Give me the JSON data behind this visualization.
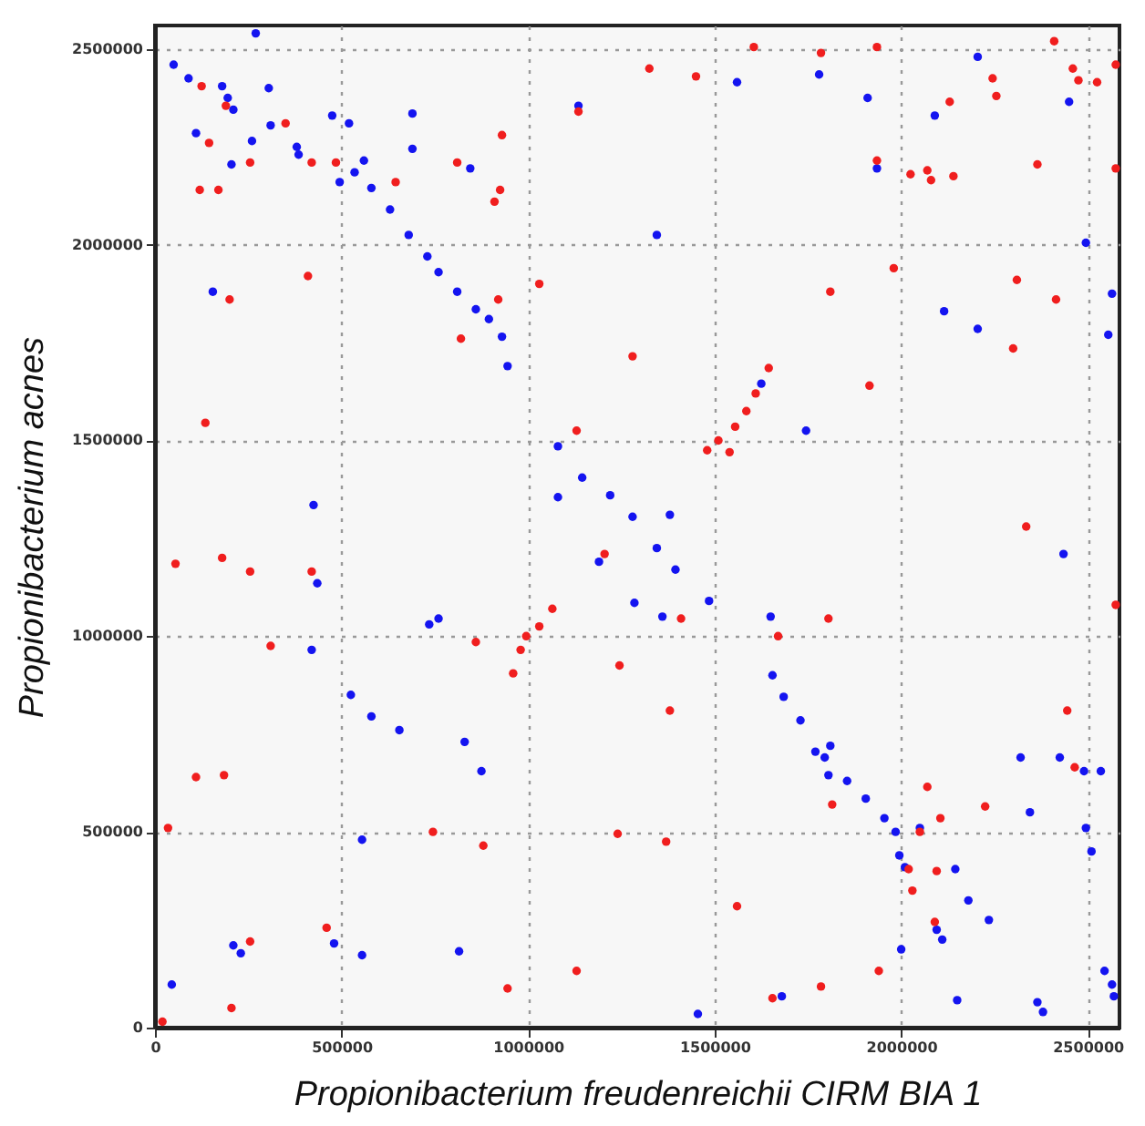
{
  "chart_data": {
    "type": "scatter",
    "xlabel": "Propionibacterium freudenreichii CIRM BIA 1",
    "ylabel": "Propionibacterium acnes",
    "xlim": [
      0,
      2585000
    ],
    "ylim": [
      0,
      2560000
    ],
    "xticks": [
      0,
      500000,
      1000000,
      1500000,
      2000000,
      2500000
    ],
    "yticks": [
      0,
      500000,
      1000000,
      1500000,
      2000000,
      2500000
    ],
    "grid": true,
    "marker": "circle",
    "series": [
      {
        "color": "#1414f0",
        "x": [
          50000,
          90000,
          110000,
          180000,
          195000,
          210000,
          205000,
          260000,
          305000,
          310000,
          380000,
          385000,
          270000,
          475000,
          520000,
          495000,
          535000,
          560000,
          580000,
          630000,
          680000,
          730000,
          760000,
          810000,
          860000,
          895000,
          930000,
          945000,
          690000,
          690000,
          845000,
          1135000,
          155000,
          425000,
          1080000,
          2205000,
          1560000,
          1780000,
          1910000,
          2090000,
          2450000,
          1935000,
          1345000,
          2495000,
          2565000,
          2115000,
          2205000,
          2555000,
          1625000,
          1745000,
          1380000,
          435000,
          420000,
          735000,
          760000,
          525000,
          580000,
          655000,
          830000,
          875000,
          555000,
          210000,
          230000,
          480000,
          555000,
          815000,
          45000,
          1190000,
          1285000,
          1080000,
          1145000,
          1220000,
          1280000,
          1345000,
          1395000,
          1485000,
          1360000,
          1650000,
          1810000,
          1805000,
          1655000,
          1685000,
          1730000,
          1770000,
          1795000,
          1855000,
          1905000,
          1955000,
          1985000,
          1995000,
          2010000,
          2145000,
          2180000,
          2235000,
          2050000,
          2095000,
          2110000,
          2000000,
          1680000,
          1455000,
          2150000,
          2365000,
          2380000,
          2320000,
          2345000,
          2425000,
          2490000,
          2535000,
          2435000,
          2495000,
          2510000,
          2545000,
          2565000,
          2570000
        ],
        "values": [
          2460000,
          2425000,
          2285000,
          2405000,
          2375000,
          2345000,
          2205000,
          2265000,
          2400000,
          2305000,
          2250000,
          2230000,
          2540000,
          2330000,
          2310000,
          2160000,
          2185000,
          2215000,
          2145000,
          2090000,
          2025000,
          1970000,
          1930000,
          1880000,
          1835000,
          1810000,
          1765000,
          1690000,
          2335000,
          2245000,
          2195000,
          2355000,
          1880000,
          1335000,
          1355000,
          2480000,
          2415000,
          2435000,
          2375000,
          2330000,
          2365000,
          2195000,
          2025000,
          2005000,
          1875000,
          1830000,
          1785000,
          1770000,
          1645000,
          1525000,
          1310000,
          1135000,
          965000,
          1030000,
          1045000,
          850000,
          795000,
          760000,
          730000,
          655000,
          480000,
          210000,
          190000,
          215000,
          185000,
          195000,
          110000,
          1190000,
          1085000,
          1485000,
          1405000,
          1360000,
          1305000,
          1225000,
          1170000,
          1090000,
          1050000,
          1050000,
          720000,
          645000,
          900000,
          845000,
          785000,
          705000,
          690000,
          630000,
          585000,
          535000,
          500000,
          440000,
          410000,
          405000,
          325000,
          275000,
          510000,
          250000,
          225000,
          200000,
          80000,
          35000,
          70000,
          65000,
          40000,
          690000,
          550000,
          690000,
          655000,
          655000,
          1210000,
          510000,
          450000,
          145000,
          110000,
          80000
        ]
      },
      {
        "color": "#f01e1e",
        "x": [
          125000,
          190000,
          145000,
          255000,
          350000,
          420000,
          485000,
          120000,
          170000,
          410000,
          200000,
          135000,
          645000,
          810000,
          930000,
          925000,
          910000,
          920000,
          820000,
          1030000,
          1130000,
          1135000,
          1280000,
          1325000,
          1450000,
          1605000,
          1785000,
          1935000,
          2410000,
          2460000,
          2475000,
          2525000,
          2575000,
          2245000,
          2255000,
          2130000,
          1935000,
          2025000,
          2070000,
          2080000,
          2140000,
          2365000,
          2575000,
          1980000,
          1810000,
          2310000,
          2415000,
          2300000,
          1915000,
          1540000,
          1480000,
          1510000,
          1555000,
          1585000,
          1610000,
          1645000,
          55000,
          180000,
          255000,
          420000,
          310000,
          110000,
          185000,
          35000,
          745000,
          880000,
          860000,
          1245000,
          1240000,
          460000,
          255000,
          205000,
          945000,
          1130000,
          20000,
          960000,
          980000,
          995000,
          1030000,
          1065000,
          1205000,
          2335000,
          2575000,
          1410000,
          1670000,
          1805000,
          1380000,
          2445000,
          2465000,
          1815000,
          2070000,
          2105000,
          2225000,
          2050000,
          1370000,
          2020000,
          2095000,
          2030000,
          2090000,
          1560000,
          1940000,
          1785000,
          1655000
        ],
        "values": [
          2405000,
          2355000,
          2260000,
          2210000,
          2310000,
          2210000,
          2210000,
          2140000,
          2140000,
          1920000,
          1860000,
          1545000,
          2160000,
          2210000,
          2280000,
          2140000,
          2110000,
          1860000,
          1760000,
          1900000,
          1525000,
          2340000,
          1715000,
          2450000,
          2430000,
          2505000,
          2490000,
          2505000,
          2520000,
          2450000,
          2420000,
          2415000,
          2460000,
          2425000,
          2380000,
          2365000,
          2215000,
          2180000,
          2190000,
          2165000,
          2175000,
          2205000,
          2195000,
          1940000,
          1880000,
          1910000,
          1860000,
          1735000,
          1640000,
          1470000,
          1475000,
          1500000,
          1535000,
          1575000,
          1620000,
          1685000,
          1185000,
          1200000,
          1165000,
          1165000,
          975000,
          640000,
          645000,
          510000,
          500000,
          465000,
          985000,
          925000,
          495000,
          255000,
          220000,
          50000,
          100000,
          145000,
          15000,
          905000,
          965000,
          1000000,
          1025000,
          1070000,
          1210000,
          1280000,
          1080000,
          1045000,
          1000000,
          1045000,
          810000,
          810000,
          665000,
          570000,
          615000,
          535000,
          565000,
          500000,
          475000,
          405000,
          400000,
          350000,
          270000,
          310000,
          145000,
          105000,
          75000
        ]
      }
    ]
  }
}
